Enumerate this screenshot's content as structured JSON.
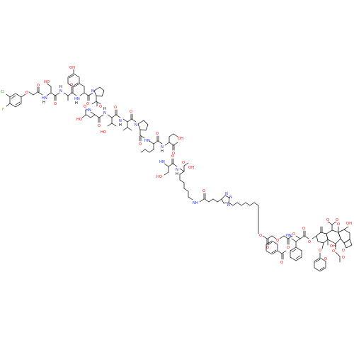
{
  "structure": {
    "colors": {
      "bond": "#000000",
      "O": "#ff0d0d",
      "N": "#2233ff",
      "Cl": "#1fa81f",
      "F": "#6fb000",
      "background": "#ffffff"
    },
    "atom_labels": {
      "Cl": "Cl",
      "F": "F",
      "O": "O",
      "OH": "OH",
      "HO": "HO",
      "NH": "NH",
      "HN": "HN",
      "N": "N",
      "H": "H",
      "NN": "N",
      "NNN": "N"
    }
  }
}
